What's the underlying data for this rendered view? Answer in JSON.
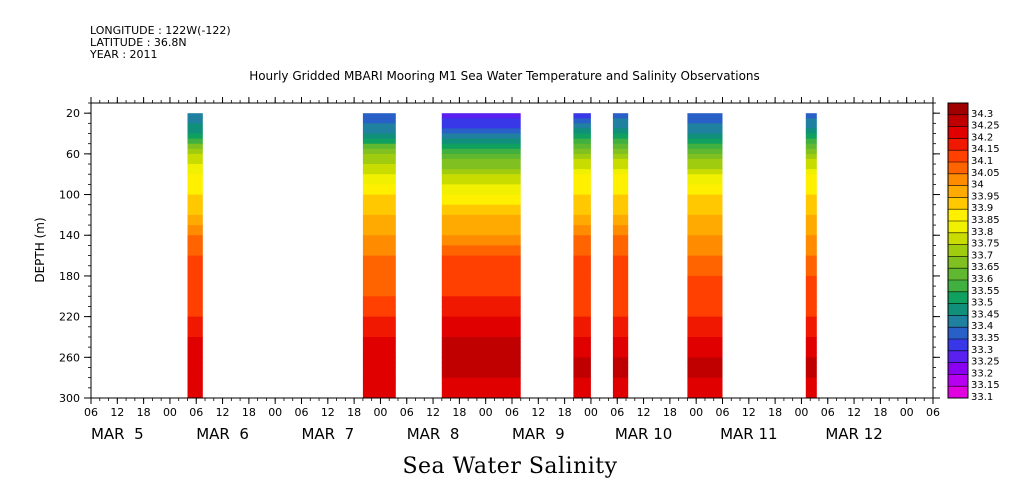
{
  "header": {
    "longitude": "LONGITUDE : 122W(-122)",
    "latitude": "LATITUDE : 36.8N",
    "year": "YEAR : 2011"
  },
  "chart_data": {
    "type": "heatmap",
    "title": "Hourly Gridded MBARI Mooring M1 Sea Water Temperature and Salinity Observations",
    "xlabel": "Sea Water Salinity",
    "ylabel": "DEPTH (m)",
    "ylim": [
      300,
      10
    ],
    "y_ticks": [
      20,
      60,
      100,
      140,
      180,
      220,
      260,
      300
    ],
    "x_hour_ticks": [
      "06",
      "12",
      "18",
      "00",
      "06",
      "12",
      "18",
      "00",
      "06",
      "12",
      "18",
      "00",
      "06",
      "12",
      "18",
      "00",
      "06",
      "12",
      "18",
      "00",
      "06",
      "12",
      "18",
      "00",
      "06",
      "12",
      "18",
      "00",
      "06",
      "12",
      "18",
      "00",
      "06"
    ],
    "x_day_labels": [
      "MAR  5",
      "MAR  6",
      "MAR  7",
      "MAR  8",
      "MAR  9",
      "MAR 10",
      "MAR 11",
      "MAR 12"
    ],
    "x_range_hours": [
      6,
      198
    ],
    "colorbar": {
      "levels": [
        33.1,
        33.15,
        33.2,
        33.25,
        33.3,
        33.35,
        33.4,
        33.45,
        33.5,
        33.55,
        33.6,
        33.65,
        33.7,
        33.75,
        33.8,
        33.85,
        33.9,
        33.95,
        34,
        34.05,
        34.1,
        34.15,
        34.2,
        34.25,
        34.3
      ],
      "labels": [
        "33.1",
        "33.15",
        "33.2",
        "33.25",
        "33.3",
        "33.35",
        "33.4",
        "33.45",
        "33.5",
        "33.55",
        "33.6",
        "33.65",
        "33.7",
        "33.75",
        "33.8",
        "33.85",
        "33.9",
        "33.95",
        "34",
        "34.05",
        "34.1",
        "34.15",
        "34.2",
        "34.25",
        "34.3"
      ],
      "colors": [
        "#e000e0",
        "#b800f0",
        "#8a00f0",
        "#5a20f0",
        "#3838e8",
        "#2860c8",
        "#2080a0",
        "#10907a",
        "#10a060",
        "#40b040",
        "#60b830",
        "#80c020",
        "#a0cc10",
        "#c8dc00",
        "#f0f000",
        "#fff000",
        "#ffc800",
        "#ffaa00",
        "#ff8c00",
        "#ff6400",
        "#ff4000",
        "#f01800",
        "#e00000",
        "#c00000",
        "#a00000"
      ]
    },
    "series": [
      {
        "x_start": 28,
        "x_end": 31.5,
        "depths": [
          20,
          40,
          60,
          80,
          100,
          120,
          140,
          160,
          180,
          200,
          220,
          240,
          260,
          280,
          300
        ],
        "values": [
          33.4,
          33.5,
          33.75,
          33.85,
          33.9,
          33.95,
          34.05,
          34.1,
          34.1,
          34.1,
          34.15,
          34.2,
          34.25,
          34.2,
          34.2
        ]
      },
      {
        "x_start": 68,
        "x_end": 75.5,
        "depths": [
          20,
          40,
          60,
          80,
          100,
          120,
          140,
          160,
          180,
          200,
          220,
          240,
          260,
          280,
          300
        ],
        "values": [
          33.35,
          33.45,
          33.7,
          33.8,
          33.9,
          33.95,
          34.0,
          34.05,
          34.05,
          34.1,
          34.15,
          34.2,
          34.2,
          34.2,
          34.2
        ]
      },
      {
        "x_start": 86,
        "x_end": 104,
        "depths": [
          20,
          40,
          60,
          80,
          100,
          120,
          140,
          160,
          180,
          200,
          220,
          240,
          260,
          280,
          300
        ],
        "values": [
          33.25,
          33.4,
          33.6,
          33.75,
          33.85,
          33.95,
          34.0,
          34.1,
          34.1,
          34.15,
          34.2,
          34.25,
          34.25,
          34.25,
          34.2
        ]
      },
      {
        "x_start": 116,
        "x_end": 120,
        "depths": [
          20,
          40,
          60,
          80,
          100,
          120,
          140,
          160,
          180,
          200,
          220,
          240,
          260,
          280,
          300
        ],
        "values": [
          33.3,
          33.5,
          33.7,
          33.85,
          33.9,
          33.95,
          34.05,
          34.1,
          34.1,
          34.1,
          34.15,
          34.2,
          34.25,
          34.25,
          34.2
        ]
      },
      {
        "x_start": 125,
        "x_end": 128.5,
        "depths": [
          20,
          40,
          60,
          80,
          100,
          120,
          140,
          160,
          180,
          200,
          220,
          240,
          260,
          280,
          300
        ],
        "values": [
          33.35,
          33.5,
          33.7,
          33.85,
          33.9,
          33.95,
          34.05,
          34.1,
          34.1,
          34.1,
          34.15,
          34.2,
          34.25,
          34.25,
          34.2
        ]
      },
      {
        "x_start": 142,
        "x_end": 150,
        "depths": [
          20,
          40,
          60,
          80,
          100,
          120,
          140,
          160,
          180,
          200,
          220,
          240,
          260,
          280,
          300
        ],
        "values": [
          33.35,
          33.45,
          33.65,
          33.8,
          33.9,
          33.95,
          34.0,
          34.05,
          34.1,
          34.1,
          34.15,
          34.2,
          34.25,
          34.25,
          34.2
        ]
      },
      {
        "x_start": 169,
        "x_end": 171.5,
        "depths": [
          20,
          40,
          60,
          80,
          100,
          120,
          140,
          160,
          180,
          200,
          220,
          240,
          260,
          280,
          300
        ],
        "values": [
          33.35,
          33.5,
          33.7,
          33.85,
          33.9,
          33.95,
          34.0,
          34.05,
          34.1,
          34.1,
          34.15,
          34.2,
          34.25,
          34.25,
          34.2
        ]
      }
    ]
  }
}
